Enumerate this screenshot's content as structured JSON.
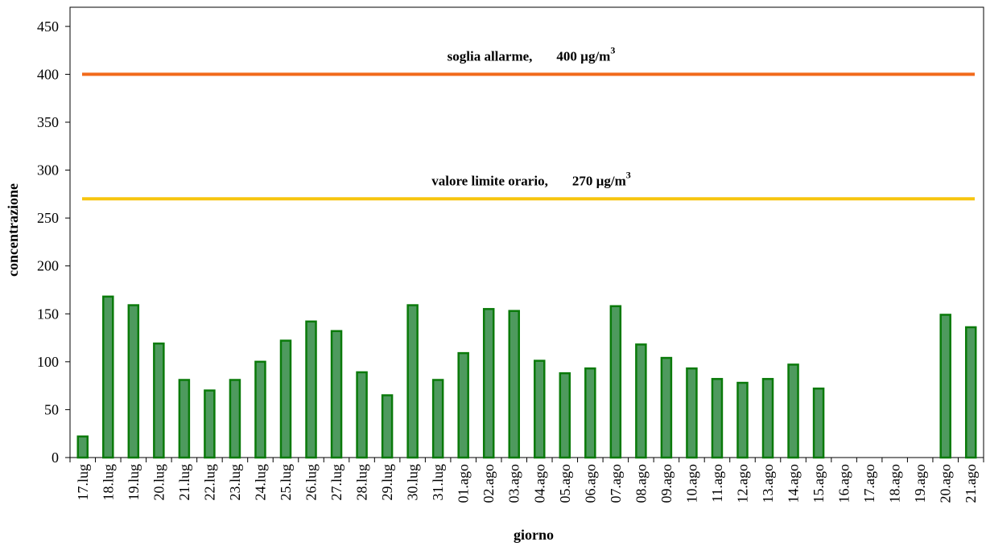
{
  "chart_data": {
    "type": "bar",
    "xlabel": "giorno",
    "ylabel": "concentrazione",
    "ylim": [
      0,
      470
    ],
    "yticks": [
      0,
      50,
      100,
      150,
      200,
      250,
      300,
      350,
      400,
      450
    ],
    "categories": [
      "17.lug",
      "18.lug",
      "19.lug",
      "20.lug",
      "21.lug",
      "22.lug",
      "23.lug",
      "24.lug",
      "25.lug",
      "26.lug",
      "27.lug",
      "28.lug",
      "29.lug",
      "30.lug",
      "31.lug",
      "01.ago",
      "02.ago",
      "03.ago",
      "04.ago",
      "05.ago",
      "06.ago",
      "07.ago",
      "08.ago",
      "09.ago",
      "10.ago",
      "11.ago",
      "12.ago",
      "13.ago",
      "14.ago",
      "15.ago",
      "16.ago",
      "17.ago",
      "18.ago",
      "19.ago",
      "20.ago",
      "21.ago"
    ],
    "values": [
      22,
      168,
      159,
      119,
      81,
      70,
      81,
      100,
      122,
      142,
      132,
      89,
      65,
      159,
      81,
      109,
      155,
      153,
      101,
      88,
      93,
      158,
      118,
      104,
      93,
      82,
      78,
      82,
      97,
      72,
      0,
      0,
      0,
      0,
      149,
      136
    ],
    "bar_color": "#4e9a5e",
    "bar_border_color": "#0a7a0a",
    "reference_lines": [
      {
        "value": 400,
        "label": "soglia allarme,",
        "value_label": "400 µg/m",
        "sup": "3",
        "color": "#f26a1b"
      },
      {
        "value": 270,
        "label": "valore limite orario,",
        "value_label": "270 µg/m",
        "sup": "3",
        "color": "#f7c50f"
      }
    ]
  }
}
